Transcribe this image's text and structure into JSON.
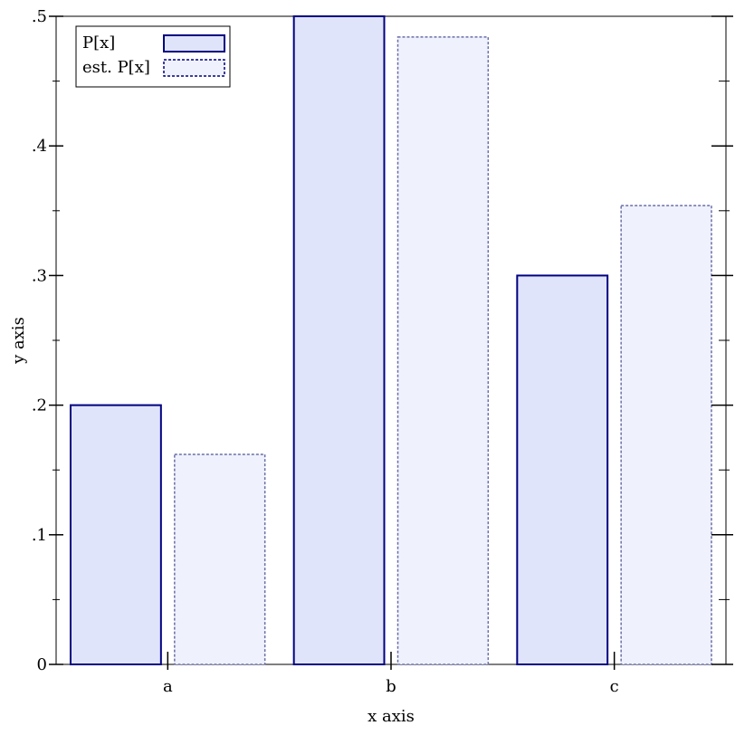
{
  "chart_data": {
    "type": "bar",
    "xlabel": "x axis",
    "ylabel": "y axis",
    "categories": [
      "a",
      "b",
      "c"
    ],
    "ylim": [
      0,
      0.5
    ],
    "yticks": [
      {
        "value": 0,
        "label": "0"
      },
      {
        "value": 0.1,
        "label": ".1"
      },
      {
        "value": 0.2,
        "label": ".2"
      },
      {
        "value": 0.3,
        "label": ".3"
      },
      {
        "value": 0.4,
        "label": ".4"
      },
      {
        "value": 0.5,
        "label": ".5"
      }
    ],
    "series": [
      {
        "name": "P[x]",
        "values": [
          0.2,
          0.5,
          0.3
        ],
        "fill": "#e0e4fb",
        "stroke": "#000080",
        "dashed": false
      },
      {
        "name": "est. P[x]",
        "values": [
          0.162,
          0.484,
          0.354
        ],
        "fill": "#eff1fd",
        "stroke": "#6a6fa6",
        "dashed": true
      }
    ],
    "legend": {
      "position": "top-left"
    },
    "grid": false
  }
}
